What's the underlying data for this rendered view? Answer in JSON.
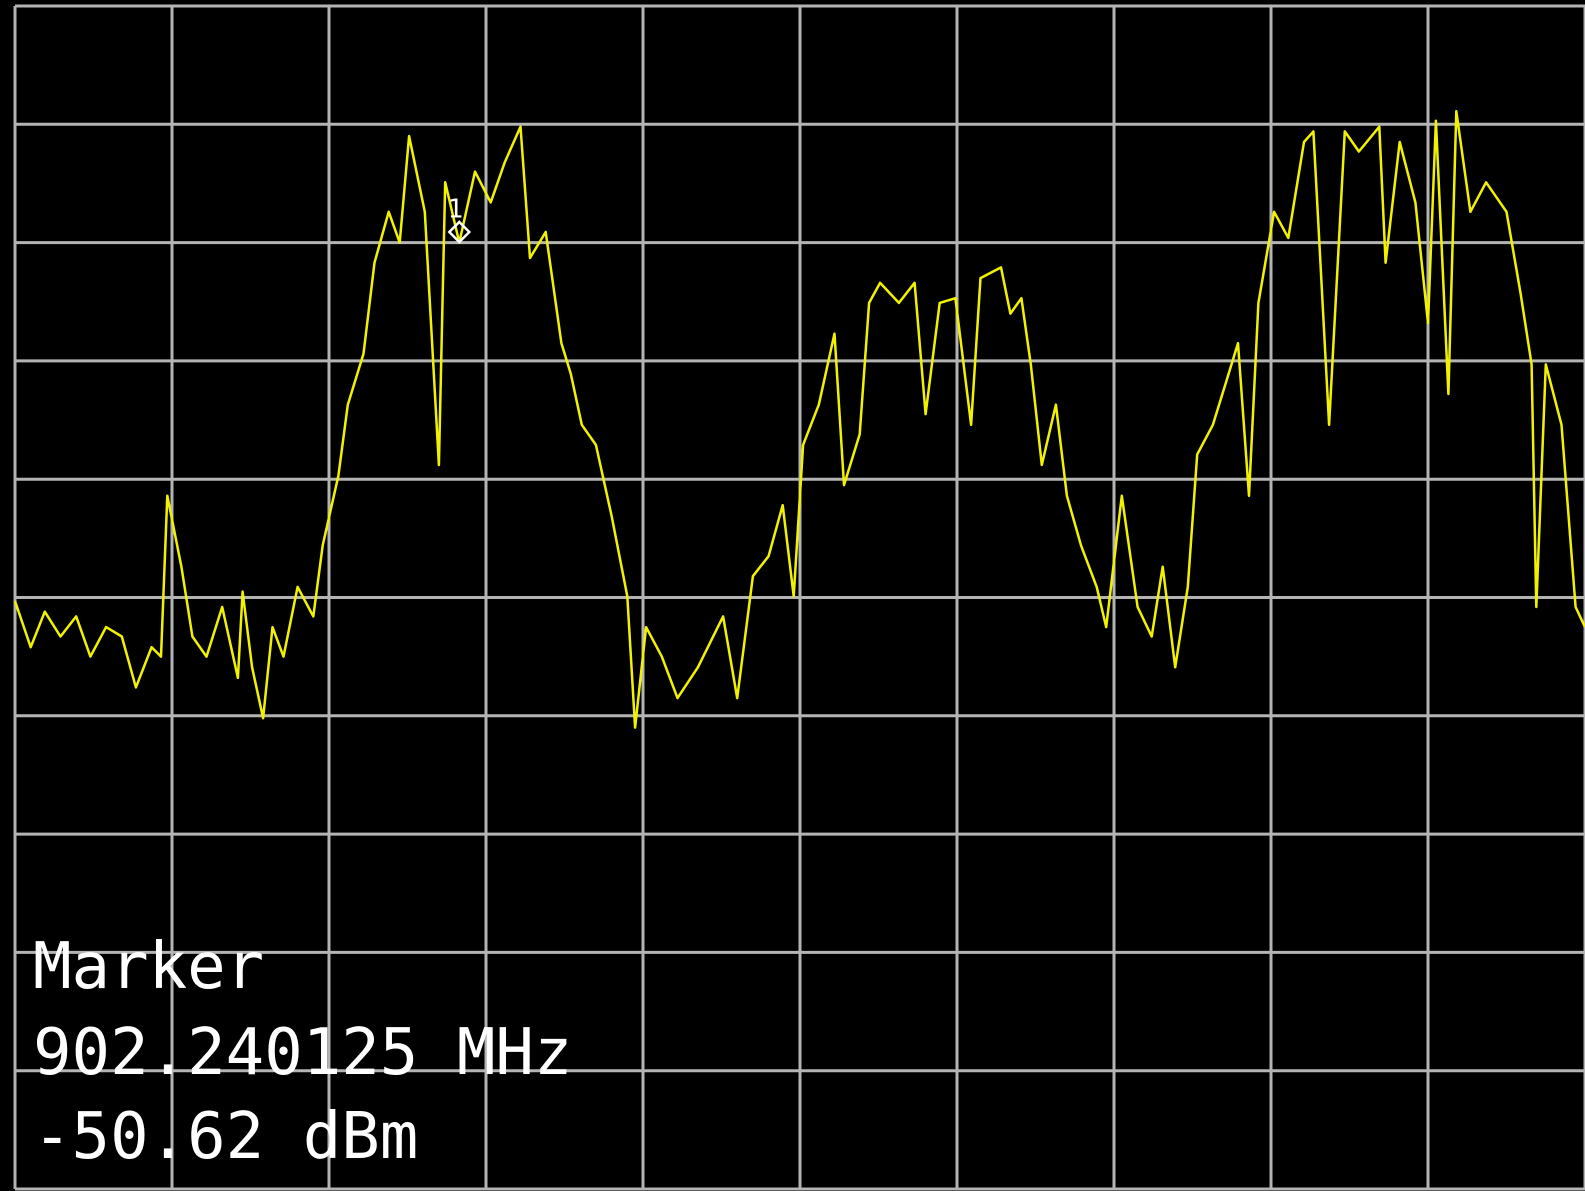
{
  "chart_data": {
    "type": "line",
    "x": [
      0,
      0.1,
      0.19,
      0.29,
      0.39,
      0.48,
      0.58,
      0.68,
      0.77,
      0.87,
      0.93,
      0.97,
      1.06,
      1.13,
      1.22,
      1.32,
      1.42,
      1.45,
      1.51,
      1.58,
      1.64,
      1.71,
      1.8,
      1.9,
      1.96,
      2.06,
      2.12,
      2.22,
      2.29,
      2.38,
      2.45,
      2.51,
      2.61,
      2.7,
      2.74,
      2.83,
      2.93,
      3.03,
      3.12,
      3.22,
      3.28,
      3.38,
      3.48,
      3.54,
      3.61,
      3.7,
      3.8,
      3.9,
      3.95,
      4.02,
      4.12,
      4.22,
      4.35,
      4.51,
      4.6,
      4.7,
      4.8,
      4.89,
      4.96,
      5.02,
      5.12,
      5.22,
      5.28,
      5.38,
      5.44,
      5.51,
      5.63,
      5.73,
      5.8,
      5.89,
      5.99,
      6.09,
      6.15,
      6.28,
      6.34,
      6.41,
      6.47,
      6.54,
      6.63,
      6.7,
      6.79,
      6.89,
      6.95,
      7.05,
      7.15,
      7.24,
      7.31,
      7.39,
      7.47,
      7.53,
      7.63,
      7.73,
      7.79,
      7.86,
      7.92,
      8.02,
      8.11,
      8.21,
      8.27,
      8.37,
      8.47,
      8.56,
      8.69,
      8.73,
      8.82,
      8.92,
      9.0,
      9.05,
      9.13,
      9.18,
      9.27,
      9.37,
      9.5,
      9.59,
      9.66,
      9.69,
      9.75,
      9.85,
      9.94,
      10.0
    ],
    "values": [
      4.97,
      4.58,
      4.88,
      4.67,
      4.84,
      4.5,
      4.75,
      4.67,
      4.24,
      4.58,
      4.5,
      5.86,
      5.26,
      4.67,
      4.5,
      4.92,
      4.32,
      5.05,
      4.41,
      3.98,
      4.75,
      4.5,
      5.09,
      4.84,
      5.44,
      6.03,
      6.63,
      7.06,
      7.83,
      8.26,
      8.0,
      8.9,
      8.26,
      6.12,
      8.51,
      8.0,
      8.6,
      8.34,
      8.68,
      8.98,
      7.87,
      8.09,
      7.15,
      6.89,
      6.46,
      6.29,
      5.69,
      5.01,
      3.9,
      4.75,
      4.5,
      4.15,
      4.41,
      4.84,
      4.15,
      5.18,
      5.35,
      5.78,
      5.01,
      6.29,
      6.63,
      7.23,
      5.95,
      6.38,
      7.49,
      7.66,
      7.49,
      7.66,
      6.55,
      7.49,
      7.53,
      6.46,
      7.7,
      7.79,
      7.4,
      7.53,
      6.97,
      6.12,
      6.63,
      5.86,
      5.44,
      5.09,
      4.75,
      5.86,
      4.92,
      4.67,
      5.26,
      4.41,
      5.09,
      6.21,
      6.46,
      6.89,
      7.15,
      5.86,
      7.49,
      8.26,
      8.04,
      8.85,
      8.94,
      6.46,
      8.94,
      8.77,
      8.98,
      7.83,
      8.85,
      8.34,
      7.32,
      9.03,
      6.72,
      9.11,
      8.26,
      8.51,
      8.26,
      7.57,
      6.97,
      4.92,
      6.97,
      6.46,
      4.92,
      4.75
    ],
    "color": "#f2f200",
    "xlim": [
      0,
      10
    ],
    "ylim": [
      0,
      10
    ],
    "xticks": [
      0,
      1,
      2,
      3,
      4,
      5,
      6,
      7,
      8,
      9,
      10
    ],
    "yticks": [
      0,
      1,
      2,
      3,
      4,
      5,
      6,
      7,
      8,
      9,
      10
    ],
    "grid": true,
    "marker": {
      "label": "1",
      "x": 2.83,
      "y": 8.09
    },
    "annotations": [
      "Marker",
      "902.240125 MHz",
      "-50.62 dBm"
    ]
  }
}
